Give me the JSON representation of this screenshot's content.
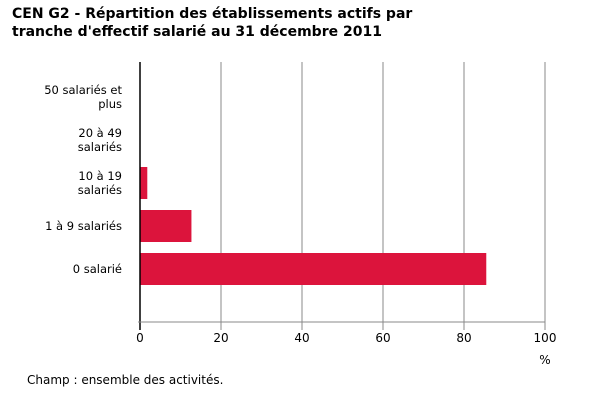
{
  "title": {
    "line1": "CEN G2 - Répartition des établissements actifs par",
    "line2": "tranche d'effectif salarié au 31 décembre 2011"
  },
  "footnote": "Champ : ensemble des activités.",
  "colors": {
    "bar": "#dc143c",
    "grid": "#888888",
    "axis": "#000000"
  },
  "chart_data": {
    "type": "bar",
    "orientation": "horizontal",
    "title": "CEN G2 - Répartition des établissements actifs par tranche d'effectif salarié au 31 décembre 2011",
    "categories": [
      [
        "50 salariés et",
        "plus"
      ],
      [
        "20 à 49",
        "salariés"
      ],
      [
        "10 à 19",
        "salariés"
      ],
      [
        "1 à 9 salariés"
      ],
      [
        "0 salarié"
      ]
    ],
    "values": [
      0,
      0,
      1.8,
      12.7,
      85.5
    ],
    "xlabel": "%",
    "xlim": [
      0,
      100
    ],
    "xticks": [
      0,
      20,
      40,
      60,
      80,
      100
    ],
    "grid": true
  }
}
